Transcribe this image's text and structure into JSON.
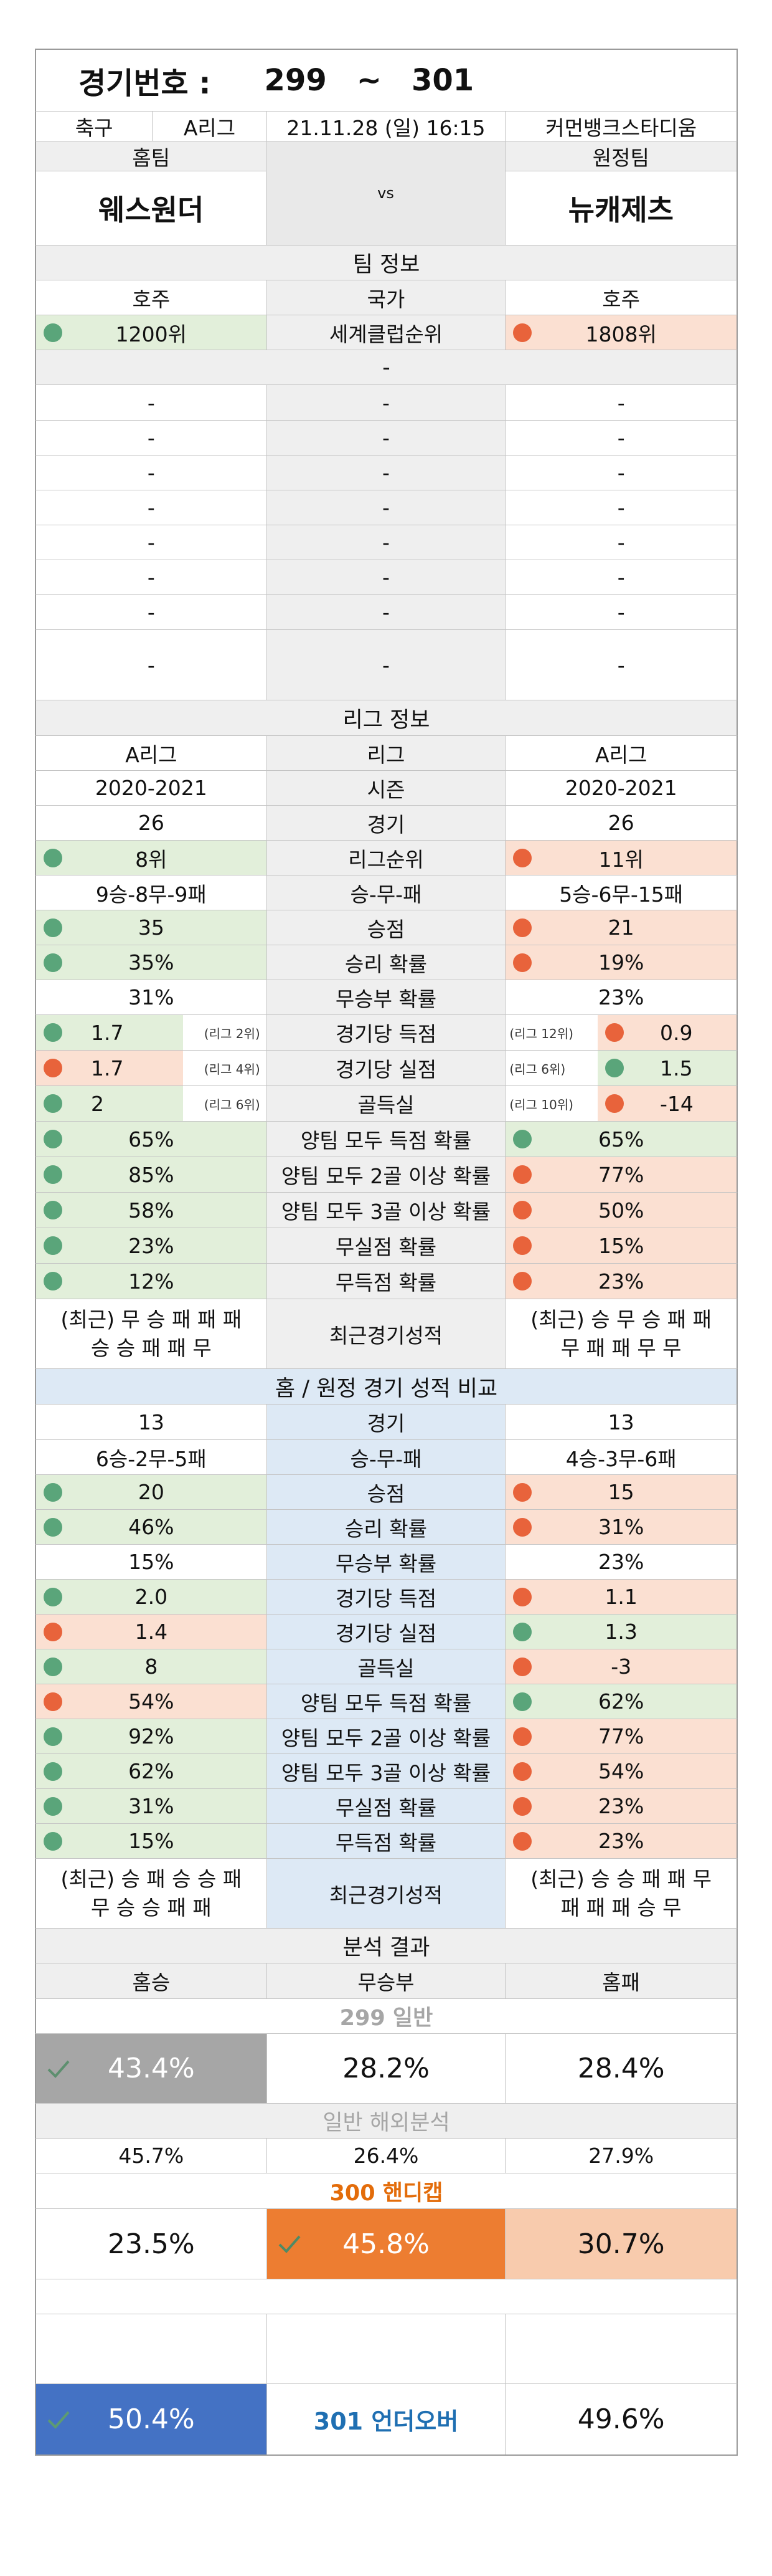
{
  "header": {
    "label": "경기번호 :",
    "from": "299",
    "tilde": "~",
    "to": "301"
  },
  "match": {
    "sport": "축구",
    "league": "A리그",
    "datetime": "21.11.28 (일) 16:15",
    "stadium": "커먼뱅크스타디움",
    "home_label": "홈팀",
    "away_label": "원정팀",
    "vs": "vs",
    "home_team": "웨스원더",
    "away_team": "뉴캐제츠"
  },
  "team_info": {
    "title": "팀 정보",
    "home_country": "호주",
    "country_label": "국가",
    "away_country": "호주",
    "home_rank": "1200위",
    "rank_label": "세계클럽순위",
    "away_rank": "1808위",
    "dash": "-"
  },
  "league_info": {
    "title": "리그 정보",
    "rows": [
      {
        "home": "A리그",
        "label": "리그",
        "away": "A리그"
      },
      {
        "home": "2020-2021",
        "label": "시즌",
        "away": "2020-2021"
      },
      {
        "home": "26",
        "label": "경기",
        "away": "26"
      },
      {
        "home": "8위",
        "label": "리그순위",
        "away": "11위",
        "hc": "green",
        "ac": "red",
        "hd": "g",
        "ad": "r"
      },
      {
        "home": "9승-8무-9패",
        "label": "승-무-패",
        "away": "5승-6무-15패"
      },
      {
        "home": "35",
        "label": "승점",
        "away": "21",
        "hc": "green",
        "ac": "red",
        "hd": "g",
        "ad": "r"
      },
      {
        "home": "35%",
        "label": "승리 확률",
        "away": "19%",
        "hc": "green",
        "ac": "red",
        "hd": "g",
        "ad": "r"
      },
      {
        "home": "31%",
        "label": "무승부 확률",
        "away": "23%"
      }
    ],
    "goal_rows": [
      {
        "home": "1.7",
        "hsub": "(리그 2위)",
        "label": "경기당 득점",
        "asub": "(리그 12위)",
        "away": "0.9",
        "hc": "green",
        "ac": "red",
        "hd": "g",
        "ad": "r"
      },
      {
        "home": "1.7",
        "hsub": "(리그 4위)",
        "label": "경기당 실점",
        "asub": "(리그 6위)",
        "away": "1.5",
        "hc": "red",
        "ac": "green",
        "hd": "r",
        "ad": "g"
      },
      {
        "home": "2",
        "hsub": "(리그 6위)",
        "label": "골득실",
        "asub": "(리그 10위)",
        "away": "-14",
        "hc": "green",
        "ac": "red",
        "hd": "g",
        "ad": "r"
      }
    ],
    "prob_rows": [
      {
        "home": "65%",
        "label": "양팀 모두 득점 확률",
        "away": "65%",
        "hc": "green",
        "ac": "green",
        "hd": "g",
        "ad": "g"
      },
      {
        "home": "85%",
        "label": "양팀 모두 2골 이상 확률",
        "away": "77%",
        "hc": "green",
        "ac": "red",
        "hd": "g",
        "ad": "r"
      },
      {
        "home": "58%",
        "label": "양팀 모두 3골 이상 확률",
        "away": "50%",
        "hc": "green",
        "ac": "red",
        "hd": "g",
        "ad": "r"
      },
      {
        "home": "23%",
        "label": "무실점 확률",
        "away": "15%",
        "hc": "green",
        "ac": "red",
        "hd": "g",
        "ad": "r"
      },
      {
        "home": "12%",
        "label": "무득점 확률",
        "away": "23%",
        "hc": "green",
        "ac": "red",
        "hd": "g",
        "ad": "r"
      }
    ],
    "recent_home_1": "(최근) 무 승 패 패 패",
    "recent_home_2": "승 승 패 패 무",
    "recent_label": "최근경기성적",
    "recent_away_1": "(최근) 승 무 승 패 패",
    "recent_away_2": "무 패 패 무 무"
  },
  "compare": {
    "title": "홈 / 원정 경기 성적 비교",
    "rows": [
      {
        "home": "13",
        "label": "경기",
        "away": "13"
      },
      {
        "home": "6승-2무-5패",
        "label": "승-무-패",
        "away": "4승-3무-6패"
      },
      {
        "home": "20",
        "label": "승점",
        "away": "15",
        "hc": "green",
        "ac": "red",
        "hd": "g",
        "ad": "r"
      },
      {
        "home": "46%",
        "label": "승리 확률",
        "away": "31%",
        "hc": "green",
        "ac": "red",
        "hd": "g",
        "ad": "r"
      },
      {
        "home": "15%",
        "label": "무승부 확률",
        "away": "23%"
      },
      {
        "home": "2.0",
        "label": "경기당 득점",
        "away": "1.1",
        "hc": "green",
        "ac": "red",
        "hd": "g",
        "ad": "r"
      },
      {
        "home": "1.4",
        "label": "경기당 실점",
        "away": "1.3",
        "hc": "red",
        "ac": "green",
        "hd": "r",
        "ad": "g"
      },
      {
        "home": "8",
        "label": "골득실",
        "away": "-3",
        "hc": "green",
        "ac": "red",
        "hd": "g",
        "ad": "r"
      },
      {
        "home": "54%",
        "label": "양팀 모두 득점 확률",
        "away": "62%",
        "hc": "red",
        "ac": "green",
        "hd": "r",
        "ad": "g"
      },
      {
        "home": "92%",
        "label": "양팀 모두 2골 이상 확률",
        "away": "77%",
        "hc": "green",
        "ac": "red",
        "hd": "g",
        "ad": "r"
      },
      {
        "home": "62%",
        "label": "양팀 모두 3골 이상 확률",
        "away": "54%",
        "hc": "green",
        "ac": "red",
        "hd": "g",
        "ad": "r"
      },
      {
        "home": "31%",
        "label": "무실점 확률",
        "away": "23%",
        "hc": "green",
        "ac": "red",
        "hd": "g",
        "ad": "r"
      },
      {
        "home": "15%",
        "label": "무득점 확률",
        "away": "23%",
        "hc": "green",
        "ac": "red",
        "hd": "g",
        "ad": "r"
      }
    ],
    "recent_home_1": "(최근) 승 패 승 승 패",
    "recent_home_2": "무 승 승 패 패",
    "recent_label": "최근경기성적",
    "recent_away_1": "(최근) 승 승 패 패 무",
    "recent_away_2": "패 패 패 승 무"
  },
  "analysis": {
    "title": "분석 결과",
    "home_win": "홈승",
    "draw": "무승부",
    "home_loss": "홈패",
    "game299": {
      "title": "299 일반",
      "home": "43.4%",
      "draw": "28.2%",
      "loss": "28.4%"
    },
    "overseas": {
      "title": "일반 해외분석",
      "home": "45.7%",
      "draw": "26.4%",
      "loss": "27.9%"
    },
    "game300": {
      "title": "300 핸디캡",
      "home": "23.5%",
      "draw": "45.8%",
      "loss": "30.7%"
    },
    "game301": {
      "under": "50.4%",
      "label": "301 언더오버",
      "over": "49.6%"
    }
  },
  "colors": {
    "green_fill": "#e2efda",
    "red_fill": "#fbe0d2",
    "green_dot": "#5aa57a",
    "red_dot": "#e8633b",
    "highlight_grey": "#a6a6a6",
    "highlight_orange": "#ed7d31",
    "highlight_blue": "#4472c4",
    "light_orange": "#f8cbad",
    "label_blue": "#1f6fb2",
    "orange_text": "#e36c0a"
  },
  "icons": {
    "check": "check-icon"
  }
}
